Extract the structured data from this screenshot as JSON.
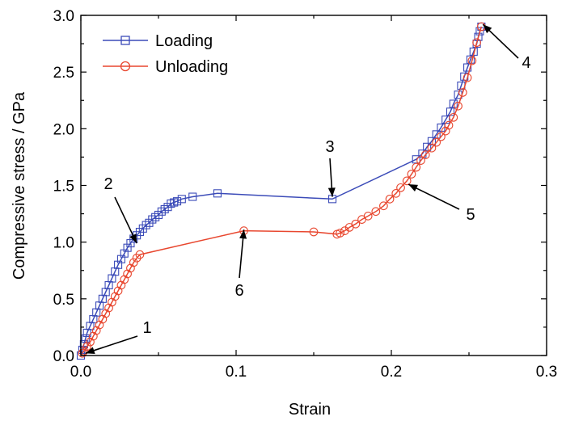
{
  "chart_data": {
    "type": "line",
    "xlabel": "Strain",
    "ylabel": "Compressive stress  / GPa",
    "xlim": [
      0.0,
      0.3
    ],
    "ylim": [
      0.0,
      3.0
    ],
    "xticks": [
      "0.0",
      "0.1",
      "0.2",
      "0.3"
    ],
    "yticks": [
      "0.0",
      "0.5",
      "1.0",
      "1.5",
      "2.0",
      "2.5",
      "3.0"
    ],
    "legend_position": "top-left",
    "series": [
      {
        "name": "Loading",
        "color": "#3b4bb8",
        "marker": "square",
        "points": [
          [
            0.0,
            0.0
          ],
          [
            0.001,
            0.05
          ],
          [
            0.002,
            0.1
          ],
          [
            0.003,
            0.15
          ],
          [
            0.004,
            0.2
          ],
          [
            0.006,
            0.26
          ],
          [
            0.008,
            0.32
          ],
          [
            0.01,
            0.38
          ],
          [
            0.012,
            0.44
          ],
          [
            0.014,
            0.5
          ],
          [
            0.016,
            0.56
          ],
          [
            0.018,
            0.62
          ],
          [
            0.02,
            0.68
          ],
          [
            0.022,
            0.74
          ],
          [
            0.024,
            0.8
          ],
          [
            0.026,
            0.85
          ],
          [
            0.028,
            0.9
          ],
          [
            0.03,
            0.95
          ],
          [
            0.032,
            0.99
          ],
          [
            0.034,
            1.03
          ],
          [
            0.036,
            1.06
          ],
          [
            0.038,
            1.09
          ],
          [
            0.04,
            1.12
          ],
          [
            0.042,
            1.15
          ],
          [
            0.044,
            1.17
          ],
          [
            0.046,
            1.2
          ],
          [
            0.048,
            1.22
          ],
          [
            0.05,
            1.24
          ],
          [
            0.052,
            1.27
          ],
          [
            0.054,
            1.29
          ],
          [
            0.056,
            1.31
          ],
          [
            0.058,
            1.34
          ],
          [
            0.06,
            1.35
          ],
          [
            0.062,
            1.36
          ],
          [
            0.065,
            1.38
          ],
          [
            0.072,
            1.4
          ],
          [
            0.088,
            1.43
          ],
          [
            0.162,
            1.38
          ],
          [
            0.216,
            1.73
          ],
          [
            0.22,
            1.78
          ],
          [
            0.223,
            1.84
          ],
          [
            0.226,
            1.89
          ],
          [
            0.229,
            1.95
          ],
          [
            0.232,
            2.01
          ],
          [
            0.235,
            2.08
          ],
          [
            0.238,
            2.15
          ],
          [
            0.24,
            2.22
          ],
          [
            0.243,
            2.3
          ],
          [
            0.245,
            2.38
          ],
          [
            0.247,
            2.46
          ],
          [
            0.249,
            2.54
          ],
          [
            0.251,
            2.61
          ],
          [
            0.253,
            2.68
          ],
          [
            0.255,
            2.75
          ],
          [
            0.256,
            2.81
          ],
          [
            0.257,
            2.86
          ],
          [
            0.258,
            2.9
          ]
        ]
      },
      {
        "name": "Unloading",
        "color": "#e8472f",
        "marker": "circle",
        "points": [
          [
            0.258,
            2.9
          ],
          [
            0.255,
            2.76
          ],
          [
            0.252,
            2.6
          ],
          [
            0.249,
            2.45
          ],
          [
            0.246,
            2.32
          ],
          [
            0.243,
            2.2
          ],
          [
            0.24,
            2.1
          ],
          [
            0.237,
            2.03
          ],
          [
            0.235,
            1.98
          ],
          [
            0.232,
            1.93
          ],
          [
            0.229,
            1.88
          ],
          [
            0.226,
            1.83
          ],
          [
            0.222,
            1.77
          ],
          [
            0.219,
            1.72
          ],
          [
            0.216,
            1.66
          ],
          [
            0.213,
            1.6
          ],
          [
            0.21,
            1.54
          ],
          [
            0.206,
            1.48
          ],
          [
            0.203,
            1.43
          ],
          [
            0.199,
            1.38
          ],
          [
            0.195,
            1.32
          ],
          [
            0.19,
            1.27
          ],
          [
            0.185,
            1.23
          ],
          [
            0.181,
            1.2
          ],
          [
            0.177,
            1.16
          ],
          [
            0.173,
            1.13
          ],
          [
            0.17,
            1.1
          ],
          [
            0.167,
            1.08
          ],
          [
            0.165,
            1.07
          ],
          [
            0.15,
            1.09
          ],
          [
            0.105,
            1.1
          ],
          [
            0.038,
            0.89
          ],
          [
            0.036,
            0.86
          ],
          [
            0.034,
            0.82
          ],
          [
            0.032,
            0.77
          ],
          [
            0.03,
            0.72
          ],
          [
            0.028,
            0.67
          ],
          [
            0.026,
            0.62
          ],
          [
            0.024,
            0.57
          ],
          [
            0.022,
            0.52
          ],
          [
            0.02,
            0.47
          ],
          [
            0.018,
            0.42
          ],
          [
            0.016,
            0.37
          ],
          [
            0.014,
            0.32
          ],
          [
            0.012,
            0.27
          ],
          [
            0.01,
            0.22
          ],
          [
            0.008,
            0.17
          ],
          [
            0.006,
            0.12
          ],
          [
            0.004,
            0.08
          ],
          [
            0.002,
            0.04
          ],
          [
            0.001,
            0.02
          ]
        ]
      }
    ],
    "annotations": [
      {
        "label": "1",
        "target": [
          0.003,
          0.02
        ]
      },
      {
        "label": "2",
        "target": [
          0.036,
          0.99
        ]
      },
      {
        "label": "3",
        "target": [
          0.162,
          1.4
        ]
      },
      {
        "label": "4",
        "target": [
          0.259,
          2.92
        ]
      },
      {
        "label": "5",
        "target": [
          0.211,
          1.51
        ]
      },
      {
        "label": "6",
        "target": [
          0.105,
          1.11
        ]
      }
    ]
  }
}
